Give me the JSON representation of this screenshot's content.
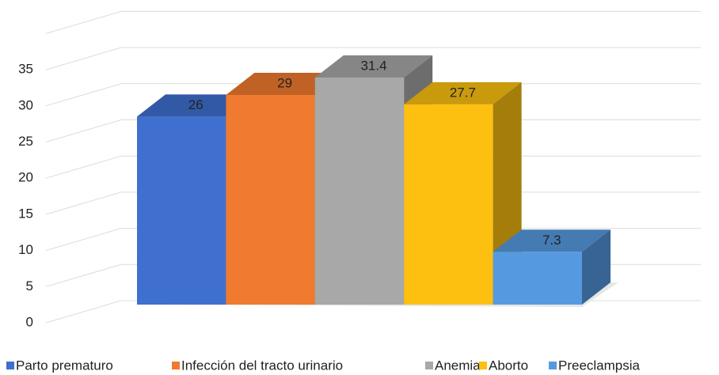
{
  "chart_data": {
    "type": "bar3d",
    "series": [
      {
        "name": "Parto prematuro",
        "color": "#3f6fcf",
        "values": [
          26
        ]
      },
      {
        "name": "Infección del tracto urinario",
        "color": "#f07a2f",
        "values": [
          29
        ]
      },
      {
        "name": "Anemia",
        "color": "#a8a8a8",
        "values": [
          31.4
        ]
      },
      {
        "name": "Aborto",
        "color": "#fdc010",
        "values": [
          27.7
        ]
      },
      {
        "name": "Preeclampsia",
        "color": "#559ae0",
        "values": [
          7.3
        ]
      }
    ],
    "ylim": [
      0,
      40
    ],
    "yticks": [
      0,
      5,
      10,
      15,
      20,
      25,
      30,
      35
    ],
    "grid": true,
    "legend": "bottom"
  }
}
